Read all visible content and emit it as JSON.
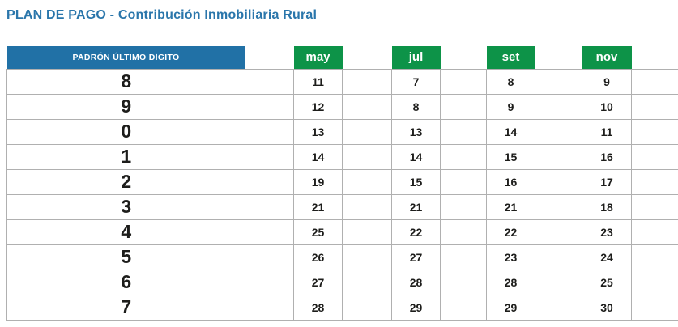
{
  "title": "PLAN DE PAGO - Contribución Inmobiliaria Rural",
  "table": {
    "digit_header": "PADRÓN ÚLTIMO DÍGITO",
    "months": [
      "may",
      "jul",
      "set",
      "nov"
    ],
    "rows": [
      {
        "digit": "8",
        "days": [
          "11",
          "7",
          "8",
          "9"
        ]
      },
      {
        "digit": "9",
        "days": [
          "12",
          "8",
          "9",
          "10"
        ]
      },
      {
        "digit": "0",
        "days": [
          "13",
          "13",
          "14",
          "11"
        ]
      },
      {
        "digit": "1",
        "days": [
          "14",
          "14",
          "15",
          "16"
        ]
      },
      {
        "digit": "2",
        "days": [
          "19",
          "15",
          "16",
          "17"
        ]
      },
      {
        "digit": "3",
        "days": [
          "21",
          "21",
          "21",
          "18"
        ]
      },
      {
        "digit": "4",
        "days": [
          "25",
          "22",
          "22",
          "23"
        ]
      },
      {
        "digit": "5",
        "days": [
          "26",
          "27",
          "23",
          "24"
        ]
      },
      {
        "digit": "6",
        "days": [
          "27",
          "28",
          "28",
          "25"
        ]
      },
      {
        "digit": "7",
        "days": [
          "28",
          "29",
          "29",
          "30"
        ]
      }
    ]
  },
  "colors": {
    "title_blue": "#2a76ab",
    "header_blue": "#2171a6",
    "month_green": "#0d9348",
    "grid_gray": "#b0b0b0",
    "text_black": "#1d1d1b"
  }
}
